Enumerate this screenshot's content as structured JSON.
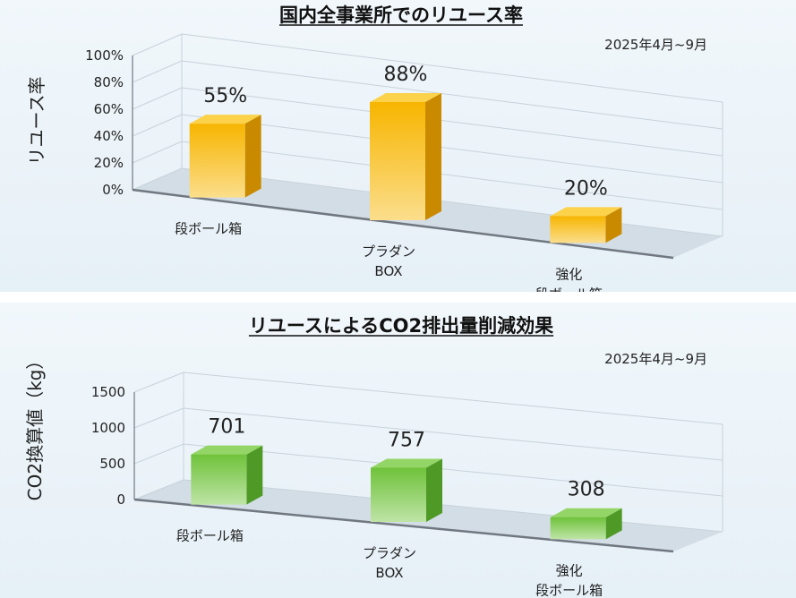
{
  "chart_data": [
    {
      "type": "bar",
      "title": "国内全事業所でのリユース率",
      "subtitle": "2025年4月~9月",
      "ylabel": "リユース率",
      "xlabel": "",
      "categories": [
        [
          "段ボール箱"
        ],
        [
          "プラダン",
          "BOX"
        ],
        [
          "強化",
          "段ボール箱"
        ]
      ],
      "values": [
        55,
        88,
        20
      ],
      "value_labels": [
        "55%",
        "88%",
        "20%"
      ],
      "ylim": [
        0,
        100
      ],
      "yticks": [
        0,
        20,
        40,
        60,
        80,
        100
      ],
      "ytick_labels": [
        "0%",
        "20%",
        "40%",
        "60%",
        "80%",
        "100%"
      ],
      "grid": true,
      "style": "3d",
      "colors": {
        "front": "#f7b500",
        "side": "#c98a00",
        "top": "#fbd24a"
      }
    },
    {
      "type": "bar",
      "title": "リユースによるCO2排出量削減効果",
      "subtitle": "2025年4月~9月",
      "ylabel": "CO2換算値（kg）",
      "xlabel": "",
      "categories": [
        [
          "段ボール箱"
        ],
        [
          "プラダン",
          "BOX"
        ],
        [
          "強化",
          "段ボール箱"
        ]
      ],
      "values": [
        701,
        757,
        308
      ],
      "value_labels": [
        "701",
        "757",
        "308"
      ],
      "ylim": [
        0,
        1500
      ],
      "yticks": [
        0,
        500,
        1000,
        1500
      ],
      "ytick_labels": [
        "0",
        "500",
        "1000",
        "1500"
      ],
      "grid": true,
      "style": "3d",
      "colors": {
        "front": "#6fc23a",
        "side": "#4f9a27",
        "top": "#93d566"
      }
    }
  ]
}
